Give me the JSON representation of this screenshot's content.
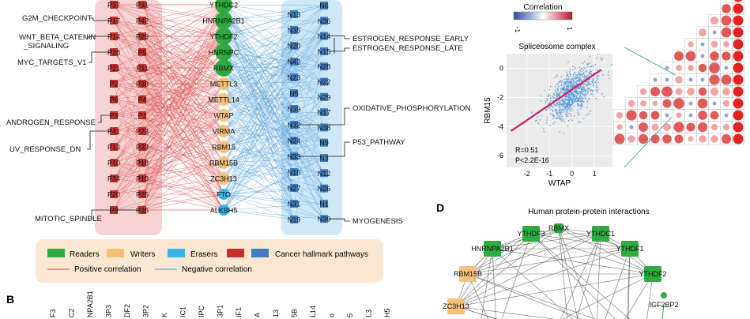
{
  "network": {
    "left_p_nodes": [
      "P37",
      "P17",
      "P14",
      "P28",
      "P21",
      "P2",
      "P6",
      "P3",
      "P41",
      "P13",
      "P10",
      "P34",
      "P20",
      "P9"
    ],
    "right_p_nodes": [
      "P31",
      "P42",
      "P29",
      "P5",
      "P11",
      "P38",
      "P4",
      "P1",
      "P23",
      "P33",
      "P18",
      "P19",
      "P25",
      "P26"
    ],
    "center_nodes": [
      {
        "label": "YTHDC2",
        "role": "reader"
      },
      {
        "label": "HNRNPA2B1",
        "role": "reader"
      },
      {
        "label": "YTHDF2",
        "role": "reader"
      },
      {
        "label": "HNRNPC",
        "role": "reader"
      },
      {
        "label": "RBMX",
        "role": "reader"
      },
      {
        "label": "METTL3",
        "role": "writer"
      },
      {
        "label": "METTL14",
        "role": "writer"
      },
      {
        "label": "WTAP",
        "role": "writer"
      },
      {
        "label": "VIRMA",
        "role": "writer"
      },
      {
        "label": "RBM15",
        "role": "writer"
      },
      {
        "label": "RBM15B",
        "role": "writer"
      },
      {
        "label": "ZC3H13",
        "role": "writer"
      },
      {
        "label": "FTO",
        "role": "eraser"
      },
      {
        "label": "ALKBH5",
        "role": "eraser"
      }
    ],
    "left_n_nodes": [
      "N13",
      "N35",
      "N20",
      "N42",
      "N23",
      "N5",
      "N39",
      "N32",
      "N24",
      "N33",
      "N16",
      "N27",
      "N31",
      "N19"
    ],
    "right_n_nodes": [
      "N6",
      "N36",
      "N14",
      "N15",
      "N28",
      "N22",
      "N29",
      "N17",
      "N38",
      "N9",
      "N3",
      "N12",
      "N26",
      "N1",
      "N30"
    ],
    "left_pathways": [
      {
        "label": "G2M_CHECKPOINT",
        "node": "P17"
      },
      {
        "label": "WNT_BETA_CATENIN\n_SIGNALING",
        "node": "P14"
      },
      {
        "label": "MYC_TARGETS_V1",
        "node": "P28"
      },
      {
        "label": "ANDROGEN_RESPONSE",
        "node": "P3"
      },
      {
        "label": "UV_RESPONSE_DN",
        "node": "P41"
      },
      {
        "label": "MITOTIC_SPINDLE",
        "node": "P26"
      }
    ],
    "right_pathways": [
      {
        "label": "ESTROGEN_RESPONSE_EARLY",
        "node": "N14"
      },
      {
        "label": "ESTROGEN_RESPONSE_LATE",
        "node": "N15"
      },
      {
        "label": "OXIDATIVE_PHOSPHORYLATION",
        "node": "N32"
      },
      {
        "label": "P53_PATHWAY",
        "node": "N33"
      },
      {
        "label": "MYOGENESIS",
        "node": "N30"
      }
    ]
  },
  "legend": {
    "readers": "Readers",
    "writers": "Writers",
    "erasers": "Erasers",
    "cancer": "Cancer hallmark pathways",
    "positive": "Positive correlation",
    "negative": "Negative correlation"
  },
  "colors": {
    "reader": "#2eab3e",
    "writer": "#f5c07a",
    "eraser": "#36b3e8",
    "cancer_red": "#c4302b",
    "cancer_blue": "#3f7fc1",
    "positive_line": "#d94040",
    "negative_line": "#4a9ad8",
    "pink_bg": "#f7d4d4",
    "blue_bg": "#cfe8f6",
    "legend_bg": "#fce8d2"
  },
  "correlation": {
    "label": "Correlation",
    "min_tick": "-1",
    "max_tick": "1"
  },
  "scatter": {
    "title": "Spliceosome complex",
    "xlabel": "WTAP",
    "ylabel": "RBM15",
    "x_ticks": [
      "-2",
      "-1",
      "0",
      "1"
    ],
    "y_ticks": [
      "0",
      "-2",
      "-4",
      "-6"
    ],
    "stat_r": "R=0.51",
    "stat_p": "P<2.2E-16"
  },
  "chart_data": {
    "type": "scatter",
    "title": "Spliceosome complex",
    "xlabel": "WTAP",
    "ylabel": "RBM15",
    "xlim": [
      -2.9,
      1.8
    ],
    "ylim": [
      -6.8,
      1.0
    ],
    "fit_line": {
      "x": [
        -2.7,
        1.3
      ],
      "y": [
        -4.3,
        -0.1
      ]
    },
    "points_summary": "dense cloud centered near (0.0, -1.7)"
  },
  "panel_b": {
    "label": "B",
    "columns": [
      "F3",
      "C2",
      "NPA2B1",
      "3P3",
      "DF2",
      "3P2",
      "K",
      "IC1",
      "IPC",
      "3P1",
      "IF1",
      "A",
      "13",
      "5B",
      "L14",
      "o",
      "5",
      "L3",
      "H5"
    ]
  },
  "panel_d": {
    "label": "D",
    "title": "Human protein-protein interactions",
    "nodes": [
      {
        "label": "YTHDF3",
        "color": "reader"
      },
      {
        "label": "RBMX",
        "color": "reader"
      },
      {
        "label": "YTHDC1",
        "color": "reader"
      },
      {
        "label": "HNRNPA2B1",
        "color": "reader"
      },
      {
        "label": "YTHDF1",
        "color": "reader"
      },
      {
        "label": "RBM15B",
        "color": "writer"
      },
      {
        "label": "YTHDF2",
        "color": "reader"
      },
      {
        "label": "ZC3H13",
        "color": "writer"
      },
      {
        "label": "IGF2BP2",
        "color": "reader"
      }
    ]
  }
}
